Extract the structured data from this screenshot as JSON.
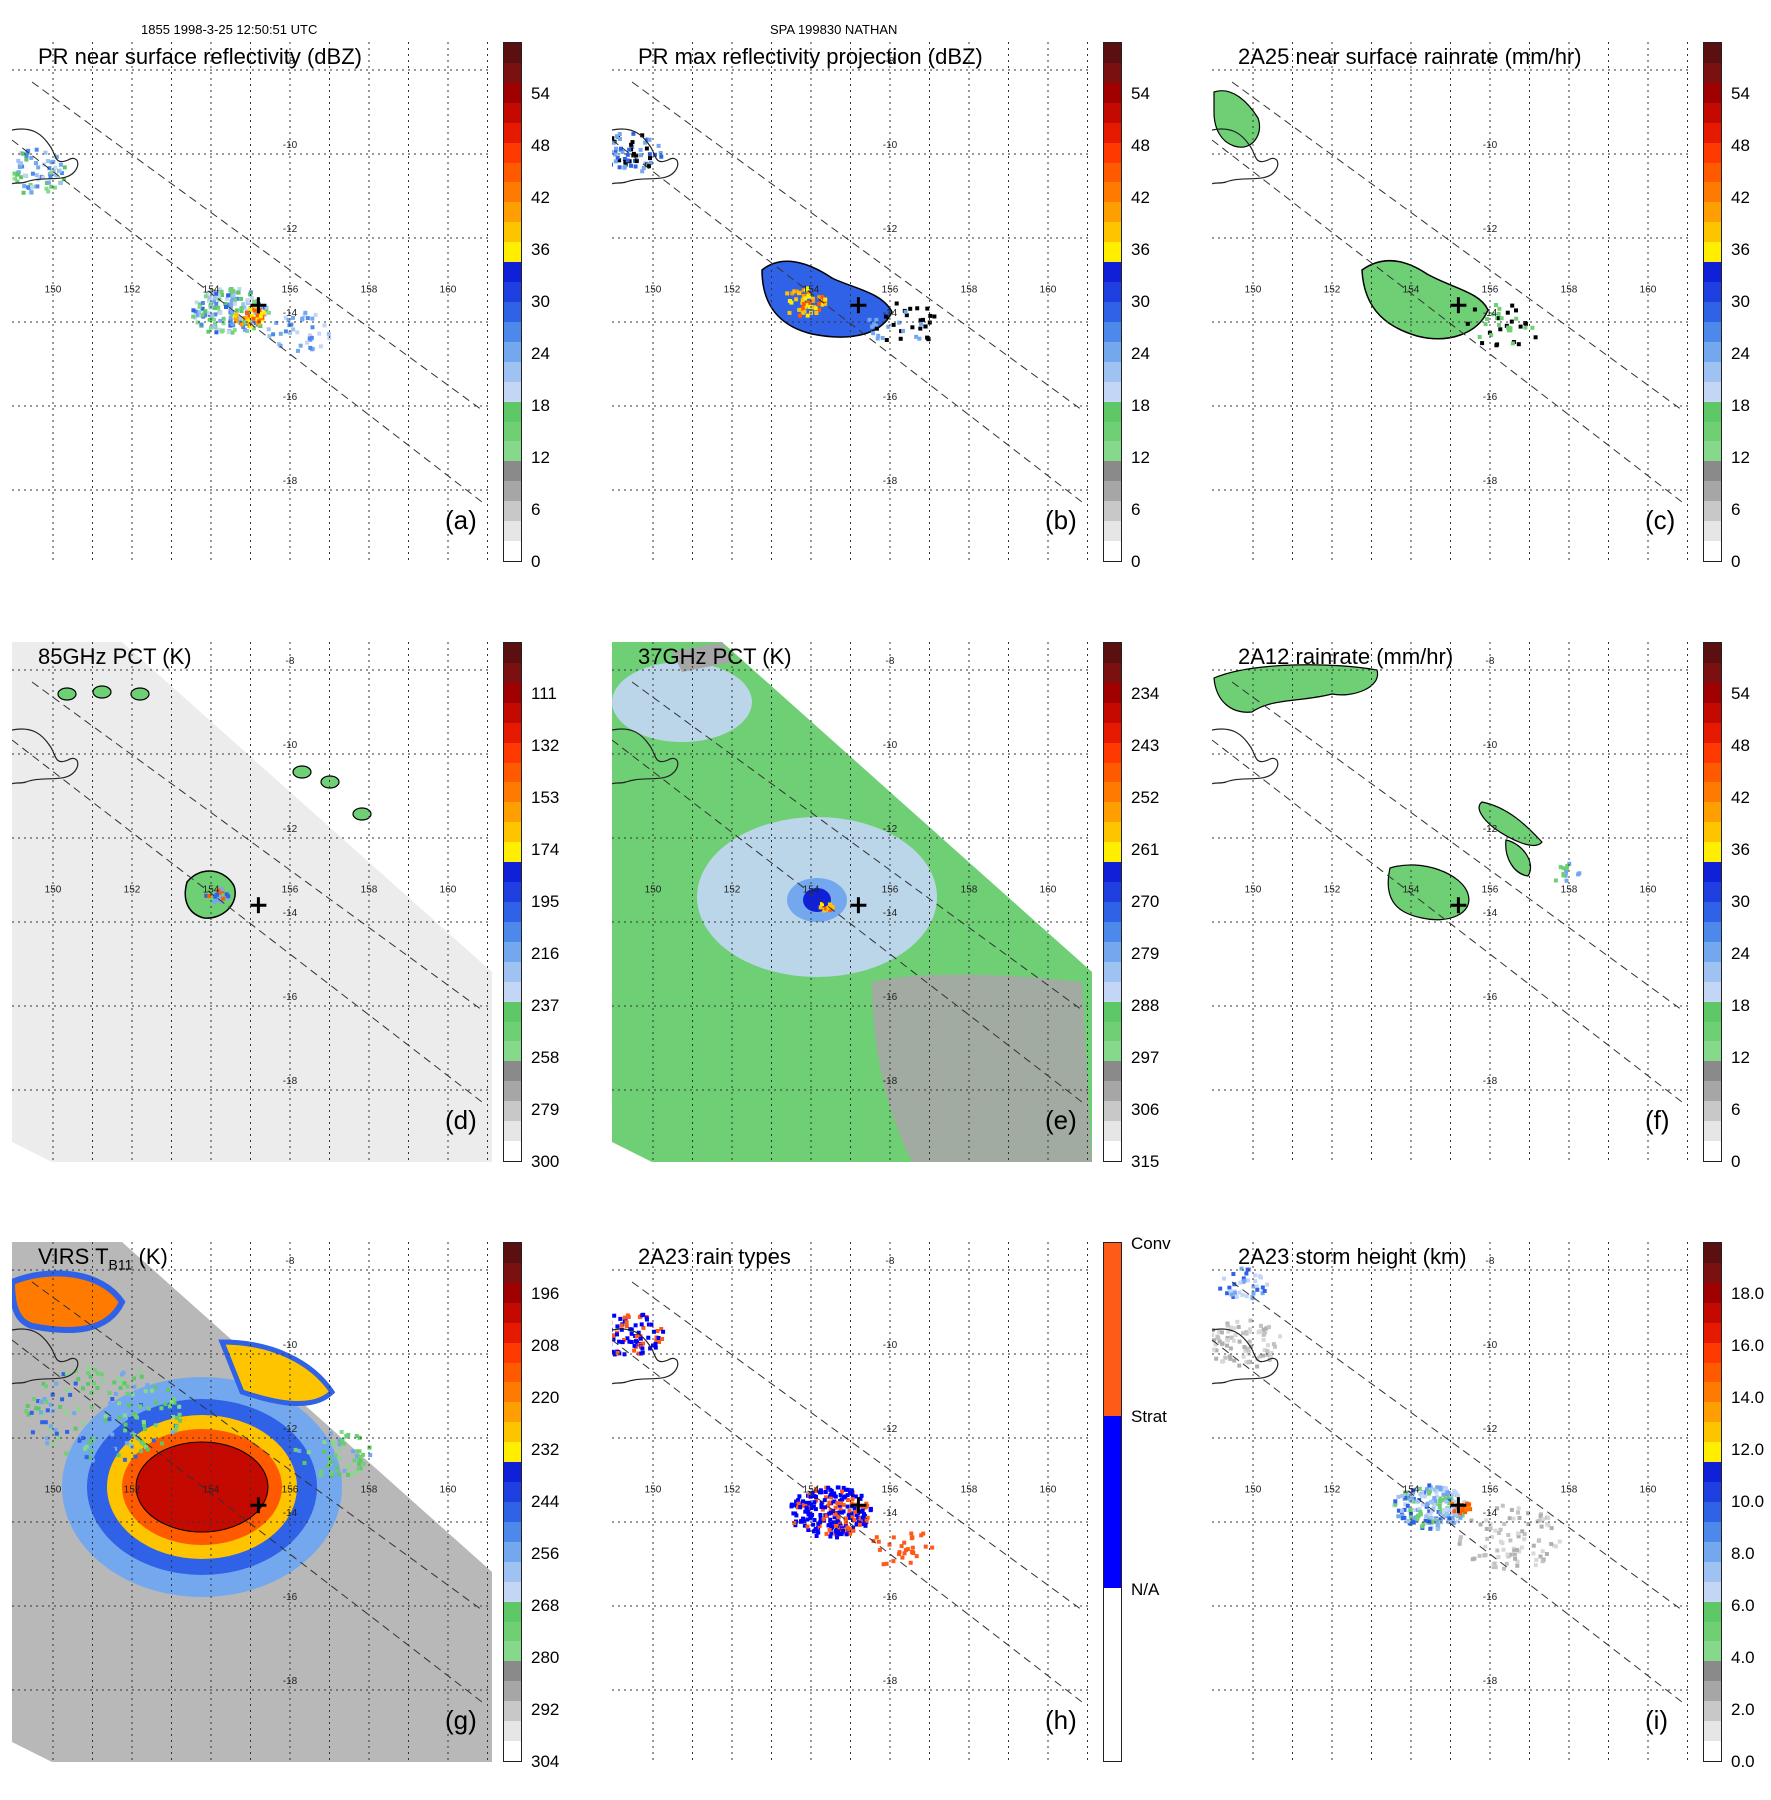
{
  "header": {
    "left": "1855 1998-3-25 12:50:51 UTC",
    "center": "SPA 199830 NATHAN"
  },
  "axes": {
    "lat_labels": [
      "-8",
      "-10",
      "-12",
      "-14",
      "-16",
      "-18"
    ],
    "lon_labels": [
      "150",
      "152",
      "154",
      "156",
      "158",
      "160"
    ]
  },
  "colors": {
    "ramp": [
      "#ffffff",
      "#e6e6e6",
      "#c8c8c8",
      "#a6a6a6",
      "#8a8a8a",
      "#86d98a",
      "#6fcf74",
      "#5ec766",
      "#c4d6f6",
      "#9ec2f2",
      "#74a8ee",
      "#4c89ea",
      "#2f62e6",
      "#1f3fe0",
      "#0f20d8",
      "#ffee00",
      "#ffc400",
      "#ff9e00",
      "#ff7a00",
      "#ff5a00",
      "#ff3a00",
      "#e61a00",
      "#c40a00",
      "#a00000",
      "#7a1010",
      "#5a1010"
    ],
    "rain_types": {
      "conv": "#ff5b18",
      "strat": "#0000ff",
      "na": "#ffffff"
    },
    "storm_center": "#000000"
  },
  "chart_data": [
    {
      "id": "a",
      "type": "heatmap",
      "label": "(a)",
      "title": "PR near surface reflectivity (dBZ)",
      "colorbar": {
        "ticks": [
          "54",
          "48",
          "42",
          "36",
          "30",
          "24",
          "18",
          "12",
          "6",
          "0"
        ],
        "min": 0,
        "max": 60
      },
      "swath": "PR"
    },
    {
      "id": "b",
      "type": "heatmap",
      "label": "(b)",
      "title": "PR max reflectivity projection (dBZ)",
      "colorbar": {
        "ticks": [
          "54",
          "48",
          "42",
          "36",
          "30",
          "24",
          "18",
          "12",
          "6",
          "0"
        ],
        "min": 0,
        "max": 60
      },
      "swath": "PR"
    },
    {
      "id": "c",
      "type": "heatmap",
      "label": "(c)",
      "title": "2A25 near surface rainrate (mm/hr)",
      "colorbar": {
        "ticks": [
          "54",
          "48",
          "42",
          "36",
          "30",
          "24",
          "18",
          "12",
          "6",
          "0"
        ],
        "min": 0,
        "max": 60
      },
      "swath": "PR"
    },
    {
      "id": "d",
      "type": "heatmap",
      "label": "(d)",
      "title": "85GHz PCT (K)",
      "colorbar": {
        "ticks": [
          "111",
          "132",
          "153",
          "174",
          "195",
          "216",
          "237",
          "258",
          "279",
          "300"
        ],
        "min": 90,
        "max": 300
      },
      "swath": "TMI"
    },
    {
      "id": "e",
      "type": "heatmap",
      "label": "(e)",
      "title": "37GHz PCT (K)",
      "colorbar": {
        "ticks": [
          "234",
          "243",
          "252",
          "261",
          "270",
          "279",
          "288",
          "297",
          "306",
          "315"
        ],
        "min": 225,
        "max": 315
      },
      "swath": "TMI"
    },
    {
      "id": "f",
      "type": "heatmap",
      "label": "(f)",
      "title": "2A12 rainrate (mm/hr)",
      "colorbar": {
        "ticks": [
          "54",
          "48",
          "42",
          "36",
          "30",
          "24",
          "18",
          "12",
          "6",
          "0"
        ],
        "min": 0,
        "max": 60
      },
      "swath": "PR"
    },
    {
      "id": "g",
      "type": "heatmap",
      "label": "(g)",
      "title": "VIRS T",
      "title_sub": "B11",
      "title_unit": "(K)",
      "colorbar": {
        "ticks": [
          "196",
          "208",
          "220",
          "232",
          "244",
          "256",
          "268",
          "280",
          "292",
          "304"
        ],
        "min": 184,
        "max": 304
      },
      "swath": "TMI"
    },
    {
      "id": "h",
      "type": "heatmap",
      "label": "(h)",
      "title": "2A23 rain types",
      "colorbar": {
        "categories": [
          "Conv",
          "Strat",
          "N/A"
        ]
      },
      "swath": "PR"
    },
    {
      "id": "i",
      "type": "heatmap",
      "label": "(i)",
      "title": "2A23 storm height (km)",
      "colorbar": {
        "ticks": [
          "18.0",
          "16.0",
          "14.0",
          "12.0",
          "10.0",
          "8.0",
          "6.0",
          "4.0",
          "2.0",
          "0.0"
        ],
        "min": 0,
        "max": 20
      },
      "swath": "PR"
    }
  ]
}
